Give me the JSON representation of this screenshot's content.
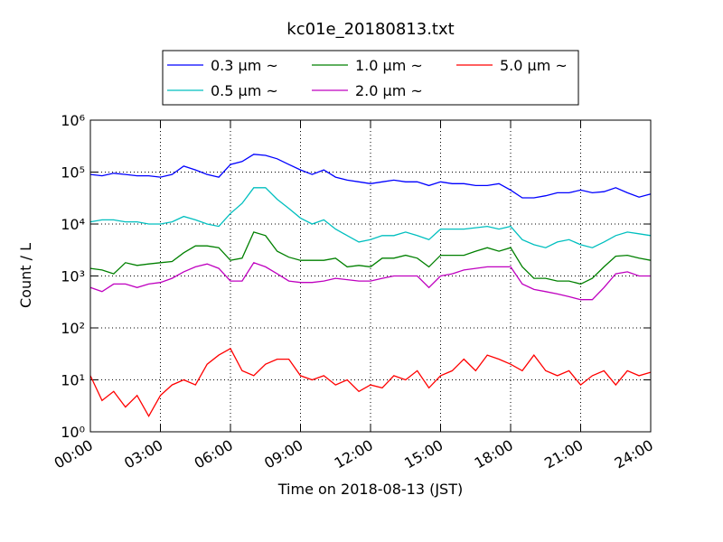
{
  "chart_data": {
    "type": "line",
    "title": "kc01e_20180813.txt",
    "xlabel": "Time on 2018-08-13 (JST)",
    "ylabel": "Count / L",
    "log_y": true,
    "grid": true,
    "legend": "top",
    "x": [
      0,
      0.5,
      1,
      1.5,
      2,
      2.5,
      3,
      3.5,
      4,
      4.5,
      5,
      5.5,
      6,
      6.5,
      7,
      7.5,
      8,
      8.5,
      9,
      9.5,
      10,
      10.5,
      11,
      11.5,
      12,
      12.5,
      13,
      13.5,
      14,
      14.5,
      15,
      15.5,
      16,
      16.5,
      17,
      17.5,
      18,
      18.5,
      19,
      19.5,
      20,
      20.5,
      21,
      21.5,
      22,
      22.5,
      23,
      23.5,
      24
    ],
    "xlim": [
      0,
      24
    ],
    "xticks": [
      {
        "value": 0,
        "label": "00:00"
      },
      {
        "value": 3,
        "label": "03:00"
      },
      {
        "value": 6,
        "label": "06:00"
      },
      {
        "value": 9,
        "label": "09:00"
      },
      {
        "value": 12,
        "label": "12:00"
      },
      {
        "value": 15,
        "label": "15:00"
      },
      {
        "value": 18,
        "label": "18:00"
      },
      {
        "value": 21,
        "label": "21:00"
      },
      {
        "value": 24,
        "label": "24:00"
      }
    ],
    "ylim": [
      1,
      1000000
    ],
    "yticks": [
      {
        "value": 1,
        "label": "10⁰"
      },
      {
        "value": 10,
        "label": "10¹"
      },
      {
        "value": 100,
        "label": "10²"
      },
      {
        "value": 1000,
        "label": "10³"
      },
      {
        "value": 10000,
        "label": "10⁴"
      },
      {
        "value": 100000,
        "label": "10⁵"
      },
      {
        "value": 1000000,
        "label": "10⁶"
      }
    ],
    "series": [
      {
        "name": "0.3 μm ~",
        "color": "#0000ff",
        "values": [
          90000,
          85000,
          95000,
          90000,
          85000,
          85000,
          80000,
          90000,
          130000,
          110000,
          90000,
          80000,
          140000,
          160000,
          220000,
          210000,
          180000,
          140000,
          110000,
          90000,
          110000,
          80000,
          70000,
          65000,
          60000,
          65000,
          70000,
          65000,
          65000,
          55000,
          65000,
          60000,
          60000,
          55000,
          55000,
          60000,
          45000,
          32000,
          32000,
          35000,
          40000,
          40000,
          45000,
          40000,
          42000,
          50000,
          40000,
          33000,
          38000
        ]
      },
      {
        "name": "0.5 μm ~",
        "color": "#00bfbf",
        "values": [
          11000,
          12000,
          12000,
          11000,
          11000,
          10000,
          10000,
          11000,
          14000,
          12000,
          10000,
          9000,
          16000,
          25000,
          50000,
          50000,
          30000,
          20000,
          13000,
          10000,
          12000,
          8000,
          6000,
          4500,
          5000,
          6000,
          6000,
          7000,
          6000,
          5000,
          8000,
          8000,
          8000,
          8500,
          9000,
          8000,
          9000,
          5000,
          4000,
          3500,
          4500,
          5000,
          4000,
          3500,
          4500,
          6000,
          7000,
          6500,
          6000
        ]
      },
      {
        "name": "1.0 μm ~",
        "color": "#008000",
        "values": [
          1400,
          1300,
          1100,
          1800,
          1600,
          1700,
          1800,
          1900,
          2800,
          3800,
          3800,
          3500,
          2000,
          2200,
          7000,
          6000,
          3000,
          2300,
          2000,
          2000,
          2000,
          2200,
          1500,
          1600,
          1500,
          2200,
          2200,
          2500,
          2200,
          1500,
          2500,
          2500,
          2500,
          3000,
          3500,
          3000,
          3500,
          1500,
          900,
          900,
          800,
          800,
          700,
          900,
          1500,
          2400,
          2500,
          2200,
          2000
        ]
      },
      {
        "name": "2.0 μm ~",
        "color": "#bf00bf",
        "values": [
          600,
          500,
          700,
          700,
          600,
          700,
          750,
          900,
          1200,
          1500,
          1700,
          1400,
          800,
          800,
          1800,
          1500,
          1100,
          800,
          750,
          750,
          800,
          900,
          850,
          800,
          800,
          900,
          1000,
          1000,
          1000,
          600,
          1000,
          1100,
          1300,
          1400,
          1500,
          1500,
          1500,
          700,
          550,
          500,
          450,
          400,
          350,
          350,
          600,
          1100,
          1200,
          1000,
          1000
        ]
      },
      {
        "name": "5.0 μm ~",
        "color": "#ff0000",
        "values": [
          12,
          4,
          6,
          3,
          5,
          2,
          5,
          8,
          10,
          8,
          20,
          30,
          40,
          15,
          12,
          20,
          25,
          25,
          12,
          10,
          12,
          8,
          10,
          6,
          8,
          7,
          12,
          10,
          15,
          7,
          12,
          15,
          25,
          15,
          30,
          25,
          20,
          15,
          30,
          15,
          12,
          15,
          8,
          12,
          15,
          8,
          15,
          12,
          14
        ]
      }
    ]
  }
}
